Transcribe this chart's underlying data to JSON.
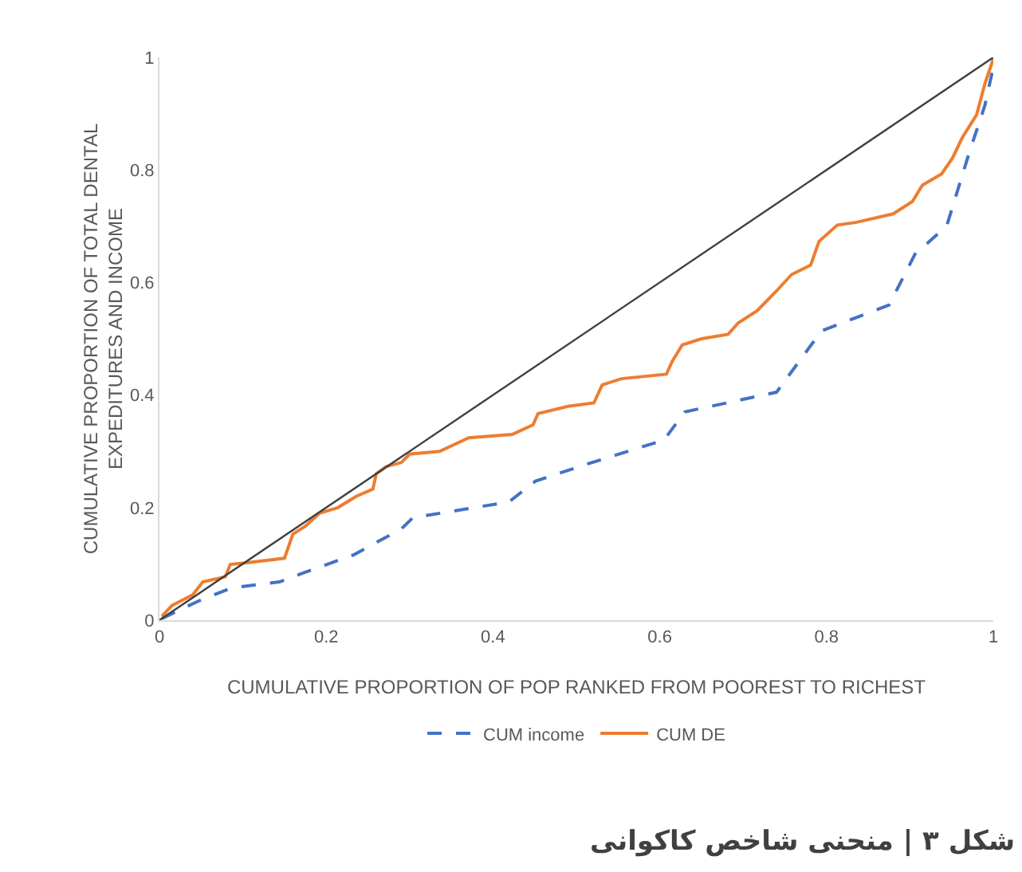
{
  "chart_data": {
    "type": "line",
    "xlabel": "CUMULATIVE PROPORTION OF POP RANKED FROM POOREST TO RICHEST",
    "ylabel": "CUMULATIVE PROPORTION OF TOTAL DENTAL EXPEDITURES AND INCOME",
    "xlim": [
      0,
      1
    ],
    "ylim": [
      0,
      1
    ],
    "xticks": [
      0,
      0.2,
      0.4,
      0.6,
      0.8,
      1
    ],
    "yticks": [
      0,
      0.2,
      0.4,
      0.6,
      0.8,
      1
    ],
    "grid": false,
    "legend": "bottom",
    "marker": "none",
    "series": [
      {
        "name": "CUM income",
        "color": "#4472c4",
        "line_style": "dashed",
        "x": [
          0.003,
          0.047,
          0.086,
          0.144,
          0.169,
          0.233,
          0.29,
          0.304,
          0.419,
          0.451,
          0.51,
          0.605,
          0.63,
          0.74,
          0.794,
          0.875,
          0.906,
          0.944,
          0.971,
          0.99,
          1
        ],
        "values": [
          0.003,
          0.034,
          0.057,
          0.068,
          0.082,
          0.116,
          0.162,
          0.182,
          0.21,
          0.247,
          0.276,
          0.32,
          0.37,
          0.405,
          0.514,
          0.56,
          0.65,
          0.7,
          0.83,
          0.915,
          0.983
        ]
      },
      {
        "name": "CUM DE",
        "color": "#ed7d31",
        "line_style": "solid",
        "x": [
          0.003,
          0.015,
          0.04,
          0.052,
          0.079,
          0.085,
          0.105,
          0.15,
          0.16,
          0.175,
          0.192,
          0.214,
          0.236,
          0.256,
          0.26,
          0.272,
          0.29,
          0.3,
          0.336,
          0.371,
          0.423,
          0.448,
          0.454,
          0.49,
          0.521,
          0.531,
          0.554,
          0.608,
          0.615,
          0.627,
          0.65,
          0.682,
          0.694,
          0.717,
          0.74,
          0.758,
          0.781,
          0.791,
          0.813,
          0.836,
          0.88,
          0.903,
          0.915,
          0.938,
          0.951,
          0.963,
          0.98,
          0.99,
          1
        ],
        "values": [
          0.007,
          0.026,
          0.045,
          0.068,
          0.077,
          0.099,
          0.102,
          0.11,
          0.153,
          0.167,
          0.19,
          0.2,
          0.22,
          0.233,
          0.26,
          0.273,
          0.28,
          0.295,
          0.3,
          0.324,
          0.33,
          0.347,
          0.367,
          0.38,
          0.386,
          0.418,
          0.429,
          0.437,
          0.46,
          0.489,
          0.5,
          0.508,
          0.528,
          0.55,
          0.585,
          0.614,
          0.631,
          0.673,
          0.702,
          0.707,
          0.722,
          0.744,
          0.773,
          0.793,
          0.821,
          0.858,
          0.898,
          0.954,
          0.997
        ]
      },
      {
        "color": "#404040",
        "line_style": "solid",
        "x": [
          0,
          1
        ],
        "values": [
          0,
          1
        ]
      }
    ],
    "annotations": [
      "شکل ۳ | منحنی شاخص کاکوانی"
    ]
  }
}
